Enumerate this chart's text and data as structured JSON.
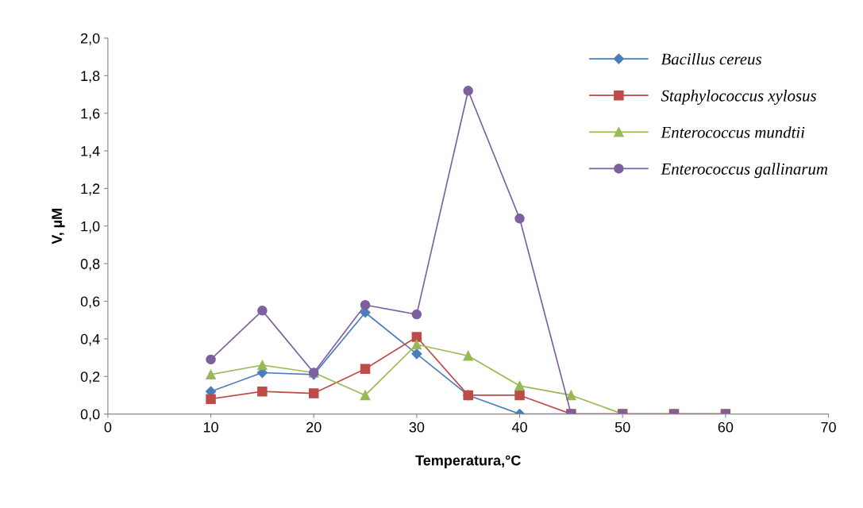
{
  "chart_data": {
    "type": "line",
    "xlabel": "Temperatura,°C",
    "ylabel": "V, µM",
    "x": [
      10,
      15,
      20,
      25,
      30,
      35,
      40,
      45,
      50,
      55,
      60
    ],
    "series": [
      {
        "name": "Bacillus cereus",
        "color": "#4a7ebb",
        "marker": "diamond",
        "values": [
          0.12,
          0.22,
          0.21,
          0.54,
          0.32,
          0.1,
          0,
          0,
          null,
          null,
          null
        ]
      },
      {
        "name": "Staphylococcus xylosus",
        "color": "#be4b48",
        "marker": "square",
        "values": [
          0.08,
          0.12,
          0.11,
          0.24,
          0.41,
          0.1,
          0.1,
          0,
          0,
          0,
          0
        ]
      },
      {
        "name": "Enterococcus mundtii",
        "color": "#98b954",
        "marker": "triangle",
        "values": [
          0.21,
          0.26,
          0.22,
          0.1,
          0.37,
          0.31,
          0.15,
          0.1,
          0,
          0,
          0
        ]
      },
      {
        "name": "Enterococcus gallinarum",
        "color": "#7d60a0",
        "marker": "circle",
        "values": [
          0.29,
          0.55,
          0.22,
          0.58,
          0.53,
          1.72,
          1.04,
          0,
          0,
          0,
          0
        ]
      }
    ],
    "xlim": [
      0,
      70
    ],
    "xticks": [
      0,
      10,
      20,
      30,
      40,
      50,
      60,
      70
    ],
    "ylim": [
      0,
      2.0
    ],
    "yticks": [
      {
        "value": 0,
        "label": "0,0"
      },
      {
        "value": 0.2,
        "label": "0,2"
      },
      {
        "value": 0.4,
        "label": "0,4"
      },
      {
        "value": 0.6,
        "label": "0,6"
      },
      {
        "value": 0.8,
        "label": "0,8"
      },
      {
        "value": 1.0,
        "label": "1,0"
      },
      {
        "value": 1.2,
        "label": "1,2"
      },
      {
        "value": 1.4,
        "label": "1,4"
      },
      {
        "value": 1.6,
        "label": "1,6"
      },
      {
        "value": 1.8,
        "label": "1,8"
      },
      {
        "value": 2.0,
        "label": "2,0"
      }
    ],
    "grid": false,
    "legend": "top right",
    "line_style": "solid"
  }
}
